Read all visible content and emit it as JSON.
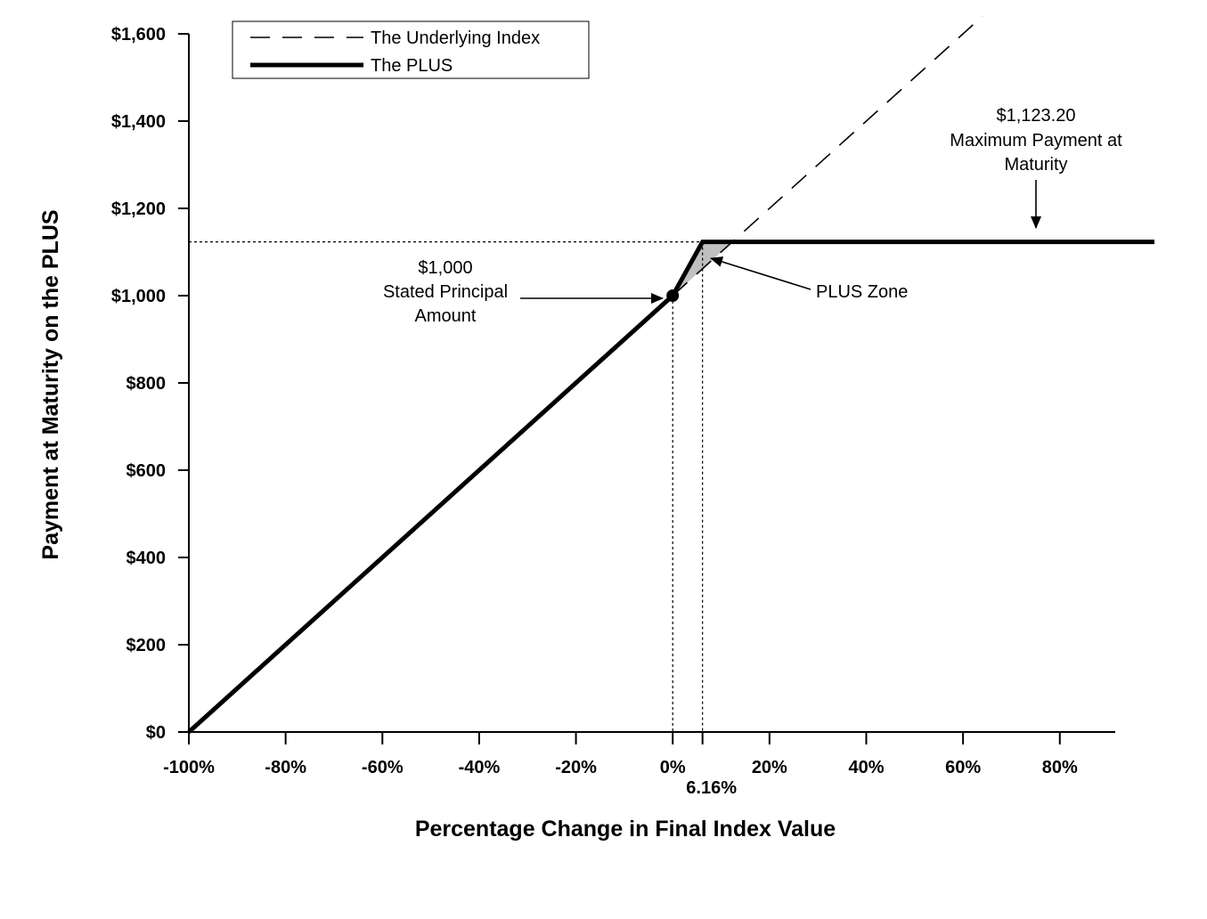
{
  "chart_data": {
    "type": "line",
    "xlabel": "Percentage Change in Final Index Value",
    "ylabel": "Payment at Maturity on the  PLUS",
    "xlim": [
      -100,
      92
    ],
    "ylim": [
      0,
      1600
    ],
    "x_ticks": [
      -100,
      -80,
      -60,
      -40,
      -20,
      0,
      20,
      40,
      60,
      80
    ],
    "x_tick_labels": [
      "-100%",
      "-80%",
      "-60%",
      "-40%",
      "-20%",
      "0%",
      "20%",
      "40%",
      "60%",
      "80%"
    ],
    "y_ticks": [
      0,
      200,
      400,
      600,
      800,
      1000,
      1200,
      1400,
      1600
    ],
    "y_tick_labels": [
      "$0",
      "$200",
      "$400",
      "$600",
      "$800",
      "$1,000",
      "$1,200",
      "$1,400",
      "$1,600"
    ],
    "extra_x_label": {
      "x": 6.16,
      "text": "6.16%"
    },
    "legend_position": "top-left",
    "series": [
      {
        "name": "The Underlying Index",
        "style": "dashed",
        "x": [
          0,
          64
        ],
        "y": [
          1000,
          1640
        ]
      },
      {
        "name": "The PLUS",
        "style": "solid-thick",
        "x": [
          -100,
          0,
          6.16,
          100
        ],
        "y": [
          0,
          1000,
          1123.2,
          1123.2
        ]
      }
    ],
    "marker_point": {
      "x": 0,
      "y": 1000
    },
    "cap": {
      "x": 6.16,
      "y": 1123.2
    },
    "plus_zone_fill": "#c0c0c0",
    "annotations": [
      {
        "name": "principal",
        "lines": [
          "$1,000",
          "Stated Principal",
          "Amount"
        ],
        "points_to": {
          "x": 0,
          "y": 1000
        }
      },
      {
        "name": "max-payment",
        "lines": [
          "$1,123.20",
          "Maximum Payment at",
          "Maturity"
        ],
        "points_to": {
          "x": 74,
          "y": 1123.2
        }
      },
      {
        "name": "plus-zone",
        "lines": [
          "PLUS Zone"
        ],
        "points_to": {
          "x": 7,
          "y": 1110
        }
      }
    ],
    "grid": false
  }
}
